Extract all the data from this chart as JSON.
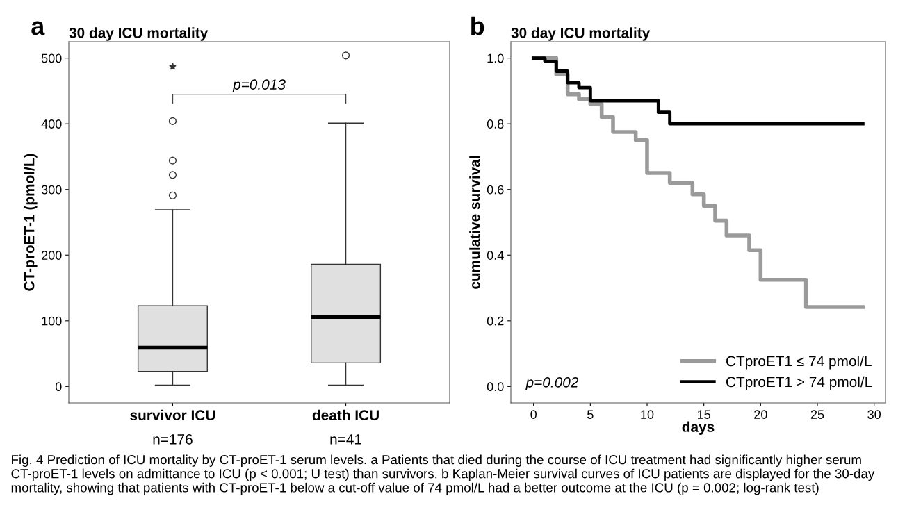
{
  "chart_data": [
    {
      "type": "box",
      "title": "30 day ICU mortality",
      "ylabel": "CT-proET-1 (pmol/L)",
      "categories": [
        "survivor ICU\nn=176",
        "death ICU\nn=41"
      ],
      "boxes": [
        {
          "low": 2,
          "q1": 23,
          "median": 59,
          "q3": 123,
          "high": 269,
          "outliers": [
            291,
            322,
            344,
            404,
            487
          ]
        },
        {
          "low": 2,
          "q1": 36,
          "median": 106,
          "q3": 186,
          "high": 401,
          "outliers": [
            504
          ]
        }
      ],
      "color": "#e0e0e0",
      "ylim": [
        -25,
        525
      ],
      "yticks": [
        0,
        100,
        200,
        300,
        400,
        500
      ],
      "grid": false,
      "annotations": [
        "a",
        "p=0.013"
      ]
    },
    {
      "type": "step",
      "title": "30 day ICU mortality",
      "xlabel": "days",
      "ylabel": "cumulative survival",
      "series": [
        {
          "name": "CTproET1 ≤ 74 pmol/L",
          "color": "#9a9a9a",
          "x": [
            0,
            2,
            3,
            4,
            5,
            6,
            7,
            9,
            10,
            12,
            14,
            15,
            16,
            17,
            19,
            20,
            24,
            29
          ],
          "values": [
            1.0,
            0.95,
            0.89,
            0.875,
            0.86,
            0.82,
            0.775,
            0.75,
            0.65,
            0.62,
            0.585,
            0.55,
            0.505,
            0.46,
            0.415,
            0.325,
            0.242,
            0.242
          ]
        },
        {
          "name": "CTproET1 > 74 pmol/L",
          "color": "#000000",
          "x": [
            0,
            1,
            2,
            3,
            4,
            5,
            11,
            12,
            29
          ],
          "values": [
            1.0,
            0.99,
            0.96,
            0.925,
            0.91,
            0.87,
            0.835,
            0.8,
            0.8
          ]
        }
      ],
      "xlim": [
        -2,
        31
      ],
      "xticks": [
        0,
        5,
        10,
        15,
        20,
        25,
        30
      ],
      "ylim": [
        -0.05,
        1.05
      ],
      "yticks": [
        {
          "value": 0,
          "label": "0.0"
        },
        0.2,
        0.4,
        0.6,
        0.8,
        {
          "value": 1,
          "label": "1.0"
        }
      ],
      "grid": false,
      "legend": "bottom right",
      "marker": "none",
      "line_style": "solid",
      "annotations": [
        "b",
        "p=0.002",
        "Fig. 4 Prediction of ICU mortality by CT-proET-1 serum levels. a Patients that died during the course of ICU treatment had significantly higher serum CT-proET-1 levels on admittance to ICU (p < 0.001; U test) than survivors. b Kaplan-Meier survival curves of ICU patients are displayed for the 30-day mortality, showing that patients with CT-proET-1 below a cut-off value of 74 pmol/L had a better outcome at the ICU (p = 0.002; log-rank test)"
      ]
    }
  ]
}
